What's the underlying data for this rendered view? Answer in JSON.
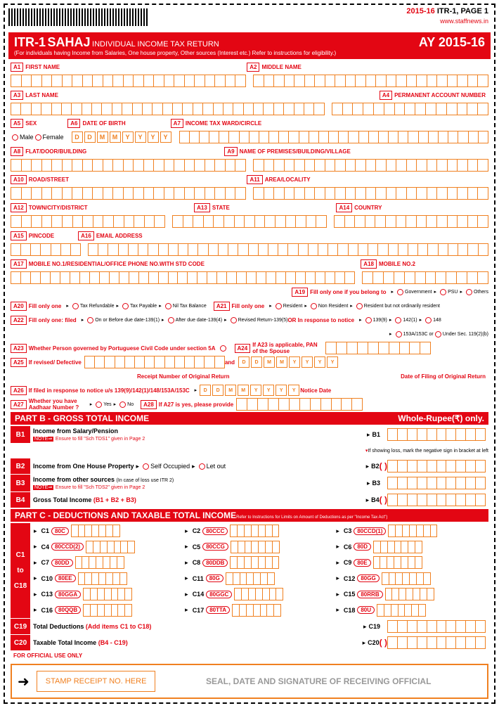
{
  "header": {
    "page_label_year": "2015-16",
    "page_label_rest": " ITR-1, PAGE 1",
    "url": "www.staffnews.in",
    "form_code": "ITR-1",
    "form_name": "SAHAJ",
    "form_desc": "INDIVIDUAL INCOME TAX RETURN",
    "ay_prefix": "AY ",
    "ay_year1": "20",
    "ay_year2": "15-16",
    "subtitle": "(For individuals having Income from Salaries, One house property, Other sources (Interest etc.) Refer to instructions for eligibility.)"
  },
  "fields": {
    "a1": "FIRST NAME",
    "a2": "MIDDLE NAME",
    "a3": "LAST NAME",
    "a4": "PERMANENT ACCOUNT NUMBER",
    "a5": "SEX",
    "a5_m": "Male",
    "a5_f": "Female",
    "a6": "DATE OF BIRTH",
    "a7": "INCOME TAX WARD/CIRCLE",
    "a8": "FLAT/DOOR/BUILDING",
    "a9": "NAME OF PREMISES/BUILDING/VILLAGE",
    "a10": "ROAD/STREET",
    "a11": "AREA/LOCALITY",
    "a12": "TOWN/CITY/DISTRICT",
    "a13": "STATE",
    "a14": "COUNTRY",
    "a15": "PINCODE",
    "a16": "EMAIL ADDRESS",
    "a17": "MOBILE NO.1/RESIDENTIAL/OFFICE PHONE NO.WITH STD CODE",
    "a18": "MOBILE NO.2",
    "a19": "Fill only one if you belong to",
    "a19_1": "Government",
    "a19_2": "PSU",
    "a19_3": "Others",
    "a20": "Fill only one",
    "a20_1": "Tax Refundable",
    "a20_2": "Tax Payable",
    "a20_3": "Nil Tax Balance",
    "a21": "Fill only one",
    "a21_1": "Resident",
    "a21_2": "Non Resident",
    "a21_3": "Resident but not ordinarily resident",
    "a22": "Fill only one: filed",
    "a22_1": "On or Before due date-139(1)",
    "a22_2": "After due date-139(4)",
    "a22_3": "Revised Return-139(5)",
    "a22_or": "OR  In response to notice",
    "a22_4": "139(9)",
    "a22_5": "142(1)",
    "a22_6": "148",
    "a22_7": "153A/153C or",
    "a22_8": "Under Sec. 119(2)(b)",
    "a23": "Whether Person governed by Portuguese Civil Code under section 5A",
    "a24": "If A23 is applicable, PAN of the Spouse",
    "a25": "If revised/ Defective",
    "a25_r": "Receipt Number of Original Return",
    "a25_and": "and",
    "a25_d": "Date of Filing of Original Return",
    "a26": "If filed in response to notice u/s 139(9)/142(1)/148/153A/153C",
    "a26_n": "Notice Date",
    "a27": "Whether you have Aadhaar Number ?",
    "a27_y": "Yes",
    "a27_n": "No",
    "a28": "If A27 is yes, please provide"
  },
  "partb": {
    "title": "PART B  - GROSS TOTAL INCOME",
    "whole": "Whole-Rupee(₹) only.",
    "b1": "Income from Salary/Pension",
    "b1n": "Ensure to fill \"Sch TDS1\" given in Page 2",
    "loss_note": "If showing loss, mark the negative sign in bracket at left",
    "b2": "Income from One House Property",
    "b2_1": "Self Occupied",
    "b2_2": "Let out",
    "b3": "Income from other sources",
    "b3_s": "(In case of loss use ITR 2)",
    "b3n": "Ensure to fill \"Sch TDS2\" given in Page 2",
    "b4": "Gross Total Income",
    "b4_f": "(B1 + B2 + B3)"
  },
  "partc": {
    "title": "PART C  - DEDUCTIONS AND TAXABLE TOTAL INCOME",
    "sub": "Refer to Instructions for Limits on Amount of Deductions as per \"Income Tax Act\")",
    "items": [
      {
        "c": "C1",
        "s": "80C"
      },
      {
        "c": "C2",
        "s": "80CCC"
      },
      {
        "c": "C3",
        "s": "80CCD(1)"
      },
      {
        "c": "C4",
        "s": "80CCD(2)"
      },
      {
        "c": "C5",
        "s": "80CCG"
      },
      {
        "c": "C6",
        "s": "80D"
      },
      {
        "c": "C7",
        "s": "80DD"
      },
      {
        "c": "C8",
        "s": "80DDB"
      },
      {
        "c": "C9",
        "s": "80E"
      },
      {
        "c": "C10",
        "s": "80EE"
      },
      {
        "c": "C11",
        "s": "80G"
      },
      {
        "c": "C12",
        "s": "80GG"
      },
      {
        "c": "C13",
        "s": "80GGA"
      },
      {
        "c": "C14",
        "s": "80GGC"
      },
      {
        "c": "C15",
        "s": "80RRB"
      },
      {
        "c": "C16",
        "s": "80QQB"
      },
      {
        "c": "C17",
        "s": "80TTA"
      },
      {
        "c": "C18",
        "s": "80U"
      }
    ],
    "c19": "Total Deductions",
    "c19_f": "(Add items C1 to C18)",
    "c20": "Taxable Total Income",
    "c20_f": "(B4 - C19)"
  },
  "official": {
    "top": "FOR OFFICIAL USE ONLY",
    "stamp": "STAMP RECEIPT NO. HERE",
    "sig": "SEAL, DATE AND SIGNATURE OF RECEIVING OFFICIAL"
  },
  "date_ph": [
    "D",
    "D",
    "M",
    "M",
    "Y",
    "Y",
    "Y",
    "Y"
  ],
  "note_arrow": "NOTE⇒",
  "to": "to"
}
